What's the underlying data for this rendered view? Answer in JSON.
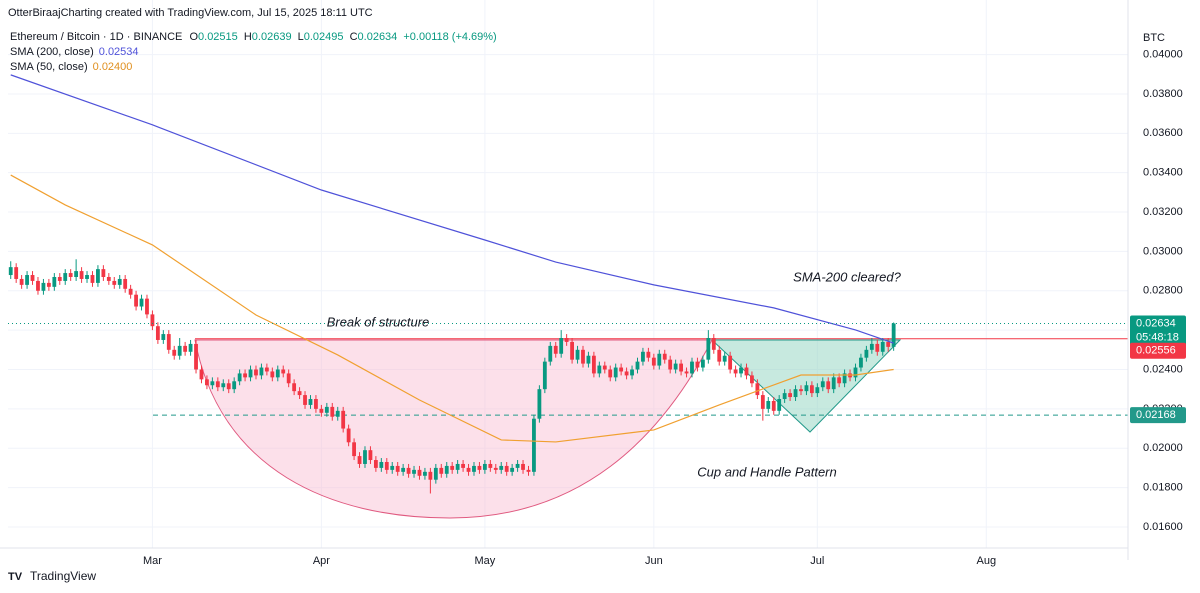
{
  "chart_data": {
    "type": "candlestick",
    "header": "OtterBiraajCharting created with TradingView.com, Jul 15, 2025 18:11 UTC",
    "symbol": "Ethereum / Bitcoin · 1D · BINANCE",
    "change": "+0.00118 (+4.69%)",
    "currency": "BTC",
    "countdown": "05:48:18",
    "brand": "TradingView",
    "up_color": "#089981",
    "down_color": "#f23645",
    "open": [
      0.0288,
      0.0292,
      0.0286,
      0.0283,
      0.0288,
      0.0285,
      0.028,
      0.0284,
      0.0282,
      0.0287,
      0.0285,
      0.0289,
      0.0287,
      0.029,
      0.0286,
      0.0288,
      0.0284,
      0.0291,
      0.0287,
      0.0285,
      0.0283,
      0.0286,
      0.0281,
      0.0278,
      0.0272,
      0.0276,
      0.0268,
      0.0262,
      0.0255,
      0.0258,
      0.025,
      0.0247,
      0.0252,
      0.0249,
      0.0253,
      0.024,
      0.0235,
      0.0232,
      0.0234,
      0.0231,
      0.0233,
      0.023,
      0.0234,
      0.0238,
      0.0236,
      0.024,
      0.0237,
      0.0241,
      0.0239,
      0.0236,
      0.024,
      0.0238,
      0.0233,
      0.0229,
      0.0227,
      0.0222,
      0.0225,
      0.022,
      0.0218,
      0.0221,
      0.0216,
      0.0219,
      0.021,
      0.0203,
      0.0196,
      0.0192,
      0.0199,
      0.0194,
      0.019,
      0.0193,
      0.0189,
      0.0191,
      0.0188,
      0.019,
      0.0187,
      0.0189,
      0.0186,
      0.0188,
      0.0184,
      0.019,
      0.0187,
      0.0191,
      0.0189,
      0.0192,
      0.019,
      0.0188,
      0.0191,
      0.0189,
      0.0192,
      0.019,
      0.0189,
      0.0191,
      0.0188,
      0.019,
      0.0192,
      0.0189,
      0.0188,
      0.0215,
      0.023,
      0.0244,
      0.0252,
      0.0248,
      0.0256,
      0.0254,
      0.0245,
      0.025,
      0.0243,
      0.0247,
      0.0238,
      0.0242,
      0.024,
      0.0236,
      0.0241,
      0.0239,
      0.0237,
      0.024,
      0.0244,
      0.0249,
      0.0246,
      0.0242,
      0.0248,
      0.0245,
      0.024,
      0.0243,
      0.0239,
      0.0238,
      0.0244,
      0.0241,
      0.0245,
      0.0256,
      0.025,
      0.0244,
      0.0247,
      0.024,
      0.0238,
      0.0241,
      0.0237,
      0.0233,
      0.0227,
      0.022,
      0.0224,
      0.0219,
      0.0225,
      0.0228,
      0.0226,
      0.023,
      0.0229,
      0.0232,
      0.0228,
      0.0231,
      0.0234,
      0.023,
      0.0236,
      0.0233,
      0.0238,
      0.0236,
      0.0241,
      0.0246,
      0.025,
      0.0253,
      0.0249,
      0.0254,
      0.02515
    ],
    "high": [
      0.0295,
      0.0294,
      0.0288,
      0.029,
      0.029,
      0.0287,
      0.0286,
      0.0286,
      0.0289,
      0.0289,
      0.0291,
      0.0291,
      0.0296,
      0.0292,
      0.029,
      0.029,
      0.0293,
      0.0293,
      0.0289,
      0.0287,
      0.0288,
      0.0288,
      0.0283,
      0.028,
      0.0278,
      0.0278,
      0.027,
      0.0264,
      0.026,
      0.026,
      0.0252,
      0.0256,
      0.0254,
      0.0255,
      0.0255,
      0.0242,
      0.0237,
      0.0236,
      0.0236,
      0.0235,
      0.0235,
      0.0236,
      0.024,
      0.024,
      0.0242,
      0.0242,
      0.0243,
      0.0243,
      0.0241,
      0.0242,
      0.0242,
      0.024,
      0.0235,
      0.0231,
      0.0229,
      0.0227,
      0.0227,
      0.0222,
      0.0223,
      0.0223,
      0.0221,
      0.0221,
      0.0212,
      0.0205,
      0.0198,
      0.0201,
      0.0201,
      0.0196,
      0.0195,
      0.0195,
      0.0193,
      0.0193,
      0.0192,
      0.0192,
      0.0191,
      0.0191,
      0.019,
      0.019,
      0.0192,
      0.0192,
      0.0193,
      0.0193,
      0.0194,
      0.0194,
      0.0192,
      0.0193,
      0.0193,
      0.0194,
      0.0194,
      0.0192,
      0.0193,
      0.0193,
      0.0192,
      0.0194,
      0.0194,
      0.0191,
      0.0217,
      0.0232,
      0.0246,
      0.0254,
      0.0254,
      0.026,
      0.0258,
      0.0256,
      0.0252,
      0.0252,
      0.0249,
      0.0249,
      0.0244,
      0.0244,
      0.0242,
      0.0243,
      0.0243,
      0.0241,
      0.0242,
      0.0246,
      0.0251,
      0.0251,
      0.0248,
      0.025,
      0.025,
      0.0247,
      0.0245,
      0.0245,
      0.0241,
      0.0246,
      0.0246,
      0.0247,
      0.026,
      0.0258,
      0.0252,
      0.0249,
      0.0249,
      0.0242,
      0.0243,
      0.0243,
      0.0239,
      0.0235,
      0.0229,
      0.0226,
      0.0226,
      0.0227,
      0.023,
      0.023,
      0.0232,
      0.0232,
      0.0234,
      0.0234,
      0.0233,
      0.0236,
      0.0236,
      0.0238,
      0.0238,
      0.024,
      0.024,
      0.0243,
      0.0248,
      0.0252,
      0.0256,
      0.0255,
      0.0256,
      0.0256,
      0.02639
    ],
    "low": [
      0.0286,
      0.0284,
      0.0281,
      0.0281,
      0.0283,
      0.0278,
      0.0278,
      0.028,
      0.028,
      0.0283,
      0.0283,
      0.0285,
      0.0285,
      0.0284,
      0.0284,
      0.0282,
      0.0282,
      0.0285,
      0.0283,
      0.0281,
      0.0281,
      0.0279,
      0.0276,
      0.027,
      0.027,
      0.0266,
      0.026,
      0.0253,
      0.0253,
      0.0248,
      0.0245,
      0.0245,
      0.0247,
      0.0247,
      0.0238,
      0.0233,
      0.023,
      0.023,
      0.0229,
      0.0229,
      0.0228,
      0.0228,
      0.0232,
      0.0234,
      0.0234,
      0.0235,
      0.0235,
      0.0237,
      0.0234,
      0.0234,
      0.0236,
      0.0231,
      0.0227,
      0.0225,
      0.022,
      0.022,
      0.0218,
      0.0216,
      0.0216,
      0.0214,
      0.0214,
      0.0208,
      0.0201,
      0.0194,
      0.019,
      0.019,
      0.0192,
      0.0188,
      0.0188,
      0.0187,
      0.0187,
      0.0186,
      0.0186,
      0.0185,
      0.0185,
      0.0184,
      0.0184,
      0.0177,
      0.0182,
      0.0185,
      0.0185,
      0.0187,
      0.0187,
      0.0188,
      0.0186,
      0.0186,
      0.0187,
      0.0187,
      0.0188,
      0.0187,
      0.0187,
      0.0186,
      0.0186,
      0.0188,
      0.0187,
      0.0186,
      0.0186,
      0.0213,
      0.0228,
      0.0242,
      0.0246,
      0.0246,
      0.0252,
      0.0243,
      0.0243,
      0.0241,
      0.0241,
      0.0236,
      0.0236,
      0.0238,
      0.0234,
      0.0234,
      0.0237,
      0.0235,
      0.0235,
      0.0238,
      0.0242,
      0.0244,
      0.024,
      0.024,
      0.0243,
      0.0238,
      0.0238,
      0.0237,
      0.0236,
      0.0236,
      0.0239,
      0.0239,
      0.0243,
      0.0248,
      0.0242,
      0.0242,
      0.0238,
      0.0236,
      0.0236,
      0.0235,
      0.0231,
      0.0225,
      0.0214,
      0.0218,
      0.0217,
      0.0217,
      0.0223,
      0.0224,
      0.0224,
      0.0227,
      0.0227,
      0.0226,
      0.0226,
      0.0229,
      0.0228,
      0.0228,
      0.0231,
      0.0231,
      0.0234,
      0.0234,
      0.0239,
      0.0244,
      0.0248,
      0.0247,
      0.0247,
      0.0249,
      0.02495
    ],
    "close": [
      0.0292,
      0.0286,
      0.0283,
      0.0288,
      0.0285,
      0.028,
      0.0284,
      0.0282,
      0.0287,
      0.0285,
      0.0289,
      0.0287,
      0.029,
      0.0286,
      0.0288,
      0.0284,
      0.0291,
      0.0287,
      0.0285,
      0.0283,
      0.0286,
      0.0281,
      0.0278,
      0.0272,
      0.0276,
      0.0268,
      0.0262,
      0.0255,
      0.0258,
      0.025,
      0.0247,
      0.0252,
      0.0249,
      0.0253,
      0.024,
      0.0235,
      0.0232,
      0.0234,
      0.0231,
      0.0233,
      0.023,
      0.0234,
      0.0238,
      0.0236,
      0.024,
      0.0237,
      0.0241,
      0.0239,
      0.0236,
      0.024,
      0.0238,
      0.0233,
      0.0229,
      0.0227,
      0.0222,
      0.0225,
      0.022,
      0.0218,
      0.0221,
      0.0216,
      0.0219,
      0.021,
      0.0203,
      0.0196,
      0.0192,
      0.0199,
      0.0194,
      0.019,
      0.0193,
      0.0189,
      0.0191,
      0.0188,
      0.019,
      0.0187,
      0.0189,
      0.0186,
      0.0188,
      0.0184,
      0.019,
      0.0187,
      0.0191,
      0.0189,
      0.0192,
      0.019,
      0.0188,
      0.0191,
      0.0189,
      0.0192,
      0.019,
      0.0189,
      0.0191,
      0.0188,
      0.019,
      0.0192,
      0.0189,
      0.0188,
      0.0215,
      0.023,
      0.0244,
      0.0252,
      0.0248,
      0.0256,
      0.0254,
      0.0245,
      0.025,
      0.0243,
      0.0247,
      0.0238,
      0.0242,
      0.024,
      0.0236,
      0.0241,
      0.0239,
      0.0237,
      0.024,
      0.0244,
      0.0249,
      0.0246,
      0.0242,
      0.0248,
      0.0245,
      0.024,
      0.0243,
      0.0239,
      0.0238,
      0.0244,
      0.0241,
      0.0245,
      0.0256,
      0.025,
      0.0244,
      0.0247,
      0.024,
      0.0238,
      0.0241,
      0.0237,
      0.0233,
      0.0227,
      0.022,
      0.0224,
      0.0219,
      0.0225,
      0.0228,
      0.0226,
      0.023,
      0.0229,
      0.0232,
      0.0228,
      0.0231,
      0.0234,
      0.023,
      0.0236,
      0.0233,
      0.0238,
      0.0236,
      0.0241,
      0.0246,
      0.025,
      0.0253,
      0.0249,
      0.0254,
      0.02515,
      0.02634
    ],
    "series": [
      {
        "name": "SMA (200, close)",
        "color": "#4f52d9",
        "legend_value": "0.02534",
        "x": [
          0,
          26,
          57,
          87,
          100,
          118,
          140,
          155,
          162
        ],
        "values": [
          0.03897,
          0.03643,
          0.03312,
          0.03058,
          0.02946,
          0.0283,
          0.02713,
          0.02601,
          0.02534
        ]
      },
      {
        "name": "SMA (50, close)",
        "color": "#f0a030",
        "legend_value": "0.02400",
        "x": [
          0,
          10,
          26,
          45,
          60,
          75,
          90,
          100,
          118,
          130,
          145,
          155,
          162
        ],
        "values": [
          0.03388,
          0.03236,
          0.03033,
          0.02677,
          0.02474,
          0.02245,
          0.02042,
          0.02032,
          0.02093,
          0.0222,
          0.02372,
          0.02372,
          0.024
        ]
      }
    ],
    "price_lines": [
      {
        "value": 0.02556,
        "color": "#f23645",
        "dash": false
      },
      {
        "value": 0.02168,
        "color": "#22998a",
        "dash": true
      }
    ],
    "annotations": [
      "Break of structure",
      "SMA-200 cleared?",
      "Cup and Handle Pattern"
    ],
    "xlim": [
      -0.5,
      205
    ],
    "xticks": [
      {
        "value": 26,
        "label": "Mar"
      },
      {
        "value": 57,
        "label": "Apr"
      },
      {
        "value": 87,
        "label": "May"
      },
      {
        "value": 118,
        "label": "Jun"
      },
      {
        "value": 148,
        "label": "Jul"
      },
      {
        "value": 179,
        "label": "Aug"
      }
    ],
    "ylim": [
      0.01493,
      0.04125
    ],
    "yticks": [
      {
        "value": 0.016,
        "label": "0.01600"
      },
      {
        "value": 0.018,
        "label": "0.01800"
      },
      {
        "value": 0.02,
        "label": "0.02000"
      },
      {
        "value": 0.022,
        "label": "0.02200"
      },
      {
        "value": 0.024,
        "label": "0.02400"
      },
      {
        "value": 0.026,
        "label": "0.02600"
      },
      {
        "value": 0.028,
        "label": "0.02800"
      },
      {
        "value": 0.03,
        "label": "0.03000"
      },
      {
        "value": 0.032,
        "label": "0.03200"
      },
      {
        "value": 0.034,
        "label": "0.03400"
      },
      {
        "value": 0.036,
        "label": "0.03600"
      },
      {
        "value": 0.038,
        "label": "0.03800"
      },
      {
        "value": 0.04,
        "label": "0.04000"
      }
    ],
    "grid": true
  }
}
